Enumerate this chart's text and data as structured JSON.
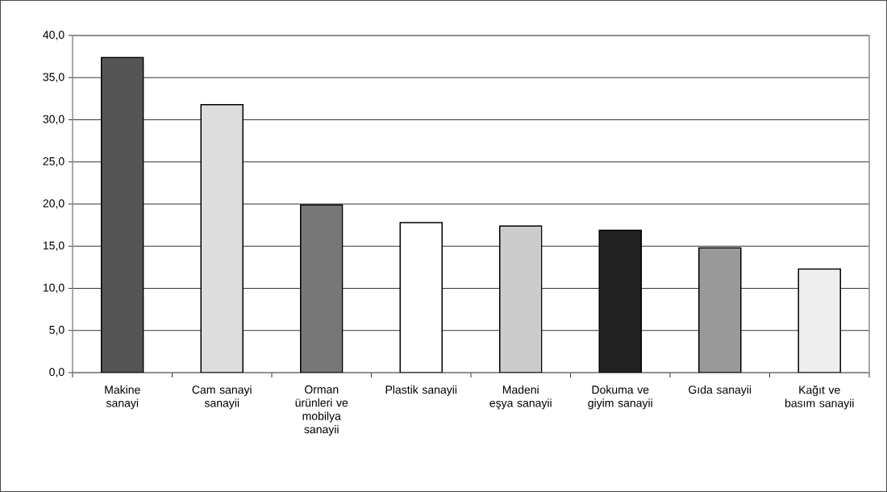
{
  "chart_data": {
    "type": "bar",
    "categories": [
      "Makine sanayi",
      "Cam sanayi sanayii",
      "Orman ürünleri ve mobilya sanayii",
      "Plastik sanayii",
      "Madeni eşya sanayii",
      "Dokuma ve giyim sanayii",
      "Gıda sanayii",
      "Kağıt ve basım sanayii"
    ],
    "values": [
      37.4,
      31.8,
      19.9,
      17.8,
      17.4,
      16.9,
      14.8,
      12.3
    ],
    "colors": [
      "#555555",
      "#dddddd",
      "#777777",
      "#ffffff",
      "#cccccc",
      "#222222",
      "#999999",
      "#eeeeee"
    ],
    "ylim": [
      0,
      40
    ],
    "yticks": [
      {
        "value": 0,
        "label": "0,0"
      },
      {
        "value": 5,
        "label": "5,0"
      },
      {
        "value": 10,
        "label": "10,0"
      },
      {
        "value": 15,
        "label": "15,0"
      },
      {
        "value": 20,
        "label": "20,0"
      },
      {
        "value": 25,
        "label": "25,0"
      },
      {
        "value": 30,
        "label": "30,0"
      },
      {
        "value": 35,
        "label": "35,0"
      },
      {
        "value": 40,
        "label": "40,0"
      }
    ],
    "grid": "y"
  }
}
